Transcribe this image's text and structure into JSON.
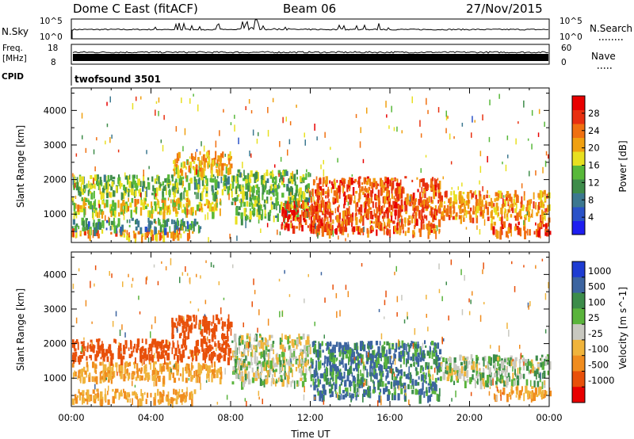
{
  "header": {
    "station": "Dome C East (fitACF)",
    "beam": "Beam 06",
    "date": "27/Nov/2015"
  },
  "top_panels": {
    "nsky_label": "N.Sky",
    "nsky_ticks": [
      "10^5",
      "10^0"
    ],
    "nsky_right_ticks": [
      "10^5",
      "10^0"
    ],
    "nsearch_label": "N.Search",
    "freq_label": "Freq.",
    "freq_unit": "[MHz]",
    "freq_ticks": [
      "18",
      "8"
    ],
    "nave_ticks": [
      "60",
      "0"
    ],
    "nave_label": "Nave",
    "cpid_label": "CPID",
    "cpid_value": "twofsound 3501"
  },
  "chart_data": [
    {
      "type": "heatmap",
      "name": "power",
      "ylabel": "Slant Range [km]",
      "xlabel": "",
      "x_range_hours": [
        0,
        24
      ],
      "y_range_km": [
        180,
        4650
      ],
      "yticks": [
        1000,
        2000,
        3000,
        4000
      ],
      "xticks": [
        "00:00",
        "04:00",
        "08:00",
        "12:00",
        "16:00",
        "20:00",
        "00:00"
      ],
      "colorbar": {
        "label": "Power [dB]",
        "range": [
          0,
          32
        ],
        "ticks": [
          4,
          8,
          12,
          16,
          20,
          24,
          28
        ],
        "colors": [
          "#1e1ef0",
          "#2a52c8",
          "#3c7890",
          "#3e8c4a",
          "#58b83a",
          "#e8e020",
          "#f0a010",
          "#f07010",
          "#e83010",
          "#e80000"
        ]
      },
      "regions": [
        {
          "h0": 0.0,
          "h1": 6.2,
          "r0": 380,
          "r1": 600,
          "value": 22
        },
        {
          "h0": 0.0,
          "h1": 6.5,
          "r0": 600,
          "r1": 900,
          "value": 10
        },
        {
          "h0": 0.0,
          "h1": 7.5,
          "r0": 1050,
          "r1": 1500,
          "value": 18
        },
        {
          "h0": 0.0,
          "h1": 8.0,
          "r0": 1600,
          "r1": 2150,
          "value": 14
        },
        {
          "h0": 5.0,
          "h1": 8.0,
          "r0": 2200,
          "r1": 2850,
          "value": 20
        },
        {
          "h0": 8.0,
          "h1": 12.0,
          "r0": 900,
          "r1": 2300,
          "value": 14
        },
        {
          "h0": 10.5,
          "h1": 13.0,
          "r0": 650,
          "r1": 1400,
          "value": 28
        },
        {
          "h0": 12.0,
          "h1": 18.5,
          "r0": 500,
          "r1": 2100,
          "value": 25
        },
        {
          "h0": 18.5,
          "h1": 24.0,
          "r0": 900,
          "r1": 1700,
          "value": 22
        },
        {
          "h0": 21.0,
          "h1": 24.0,
          "r0": 500,
          "r1": 800,
          "value": 26
        }
      ]
    },
    {
      "type": "heatmap",
      "name": "velocity",
      "ylabel": "Slant Range [km]",
      "xlabel": "Time UT",
      "x_range_hours": [
        0,
        24
      ],
      "y_range_km": [
        180,
        4650
      ],
      "yticks": [
        1000,
        2000,
        3000,
        4000
      ],
      "xticks": [
        "00:00",
        "04:00",
        "08:00",
        "12:00",
        "16:00",
        "20:00",
        "00:00"
      ],
      "colorbar": {
        "label": "Velocity [m s^-1]",
        "ticks": [
          "1000",
          "500",
          "100",
          "25",
          "-25",
          "-100",
          "-500",
          "-1000"
        ],
        "colors": [
          "#1e3cd2",
          "#3c64a0",
          "#3c8c4a",
          "#5ab43c",
          "#c8c8c0",
          "#f0b43c",
          "#f08c1e",
          "#e8500a",
          "#e80000"
        ]
      },
      "regions": [
        {
          "h0": 0.0,
          "h1": 6.2,
          "r0": 380,
          "r1": 700,
          "value": -100
        },
        {
          "h0": 0.0,
          "h1": 7.5,
          "r0": 1000,
          "r1": 1500,
          "value": -100
        },
        {
          "h0": 0.0,
          "h1": 8.0,
          "r0": 1600,
          "r1": 2150,
          "value": -500
        },
        {
          "h0": 5.0,
          "h1": 8.0,
          "r0": 2200,
          "r1": 2850,
          "value": -500
        },
        {
          "h0": 8.0,
          "h1": 12.0,
          "r0": 900,
          "r1": 2300,
          "value": 0
        },
        {
          "h0": 12.0,
          "h1": 18.5,
          "r0": 500,
          "r1": 2100,
          "value": 100
        },
        {
          "h0": 18.5,
          "h1": 24.0,
          "r0": 900,
          "r1": 1700,
          "value": 25
        },
        {
          "h0": 21.0,
          "h1": 24.0,
          "r0": 500,
          "r1": 800,
          "value": -100
        }
      ]
    }
  ]
}
